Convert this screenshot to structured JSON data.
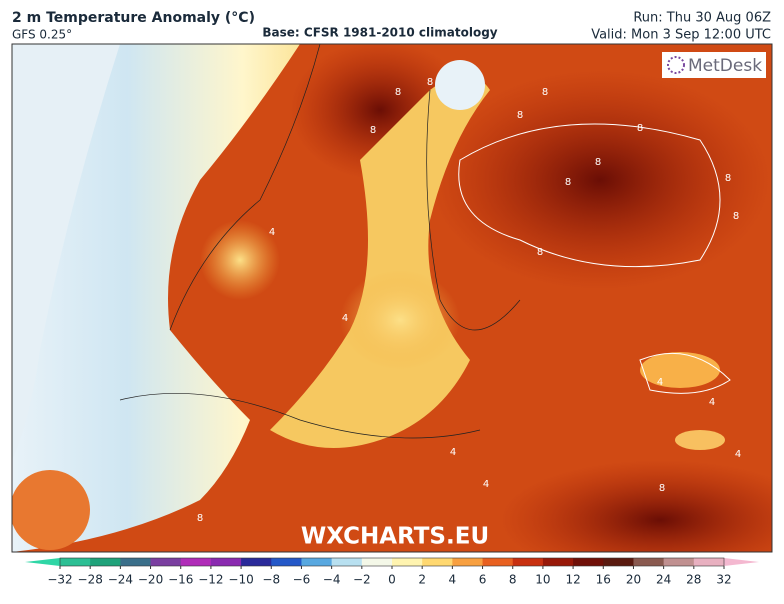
{
  "header": {
    "title": "2 m Temperature Anomaly (°C)",
    "model": "GFS 0.25°",
    "base": "Base: CFSR 1981-2010 climatology",
    "run": "Run: Thu 30 Aug 06Z",
    "valid": "Valid: Mon 3 Sep 12:00 UTC"
  },
  "logo": "MetDesk",
  "watermark": "WXCHARTS.EU",
  "contour_labels": [
    8,
    8,
    8,
    8,
    8,
    8,
    8,
    8,
    8,
    8,
    4,
    4,
    4,
    4,
    4,
    4,
    8,
    8,
    4,
    8
  ],
  "colorbar": {
    "ticks": [
      {
        "value": -32,
        "label": "−32"
      },
      {
        "value": -28,
        "label": "−28"
      },
      {
        "value": -24,
        "label": "−24"
      },
      {
        "value": -20,
        "label": "−20"
      },
      {
        "value": -16,
        "label": "−16"
      },
      {
        "value": -12,
        "label": "−12"
      },
      {
        "value": -10,
        "label": "−10"
      },
      {
        "value": -8,
        "label": "−8"
      },
      {
        "value": -6,
        "label": "−6"
      },
      {
        "value": -4,
        "label": "−4"
      },
      {
        "value": -2,
        "label": "−2"
      },
      0,
      2,
      4,
      6,
      8,
      10,
      12,
      16,
      20,
      24,
      28,
      32
    ],
    "colors": [
      "#2fd6a6",
      "#2cbf94",
      "#1fa27a",
      "#3a6f8a",
      "#7a3ea0",
      "#b02cb8",
      "#8a2ab0",
      "#2a2a9a",
      "#2458c8",
      "#58a8e0",
      "#b8e0f0",
      "#f4f8e8",
      "#fff4b0",
      "#ffd870",
      "#f8a040",
      "#e86020",
      "#c83010",
      "#981808",
      "#701008",
      "#5a1a10",
      "#8a5a50",
      "#c09090",
      "#e8b0c0",
      "#f4b8d0"
    ]
  }
}
